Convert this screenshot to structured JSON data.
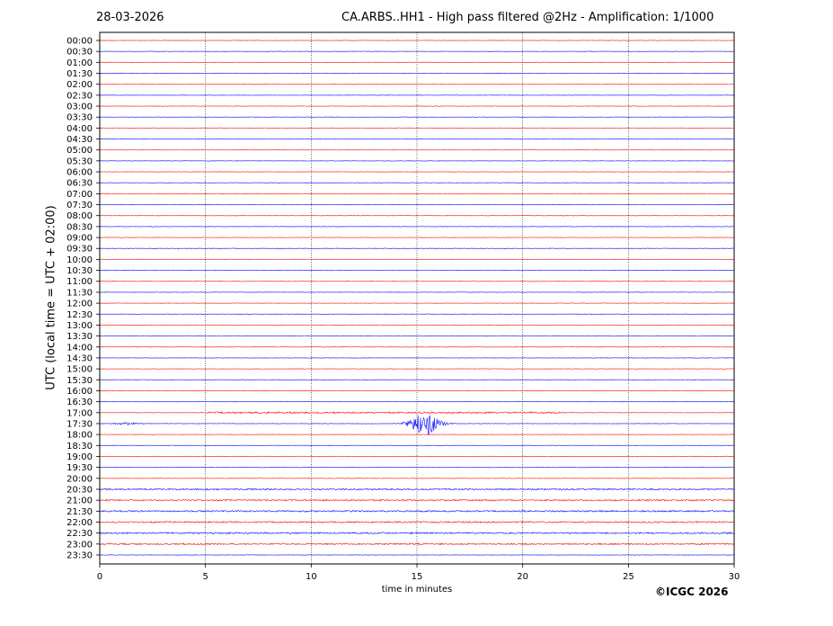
{
  "header": {
    "date": "28-03-2026",
    "title": "CA.ARBS..HH1 - High pass filtered @2Hz - Amplification: 1/1000"
  },
  "footer": {
    "copyright": "©ICGC 2026"
  },
  "chart_data": {
    "type": "line",
    "subtype": "helicorder",
    "xlabel": "time in minutes",
    "ylabel": "UTC (local time = UTC + 02:00)",
    "xlim": [
      0,
      30
    ],
    "x_ticks": [
      "0",
      "5",
      "10",
      "15",
      "20",
      "25",
      "30"
    ],
    "row_labels": [
      "00:00",
      "00:30",
      "01:00",
      "01:30",
      "02:00",
      "02:30",
      "03:00",
      "03:30",
      "04:00",
      "04:30",
      "05:00",
      "05:30",
      "06:00",
      "06:30",
      "07:00",
      "07:30",
      "08:00",
      "08:30",
      "09:00",
      "09:30",
      "10:00",
      "10:30",
      "11:00",
      "11:30",
      "12:00",
      "12:30",
      "13:00",
      "13:30",
      "14:00",
      "14:30",
      "15:00",
      "15:30",
      "16:00",
      "16:30",
      "17:00",
      "17:30",
      "18:00",
      "18:30",
      "19:00",
      "19:30",
      "20:00",
      "20:30",
      "21:00",
      "21:30",
      "22:00",
      "22:30",
      "23:00",
      "23:30"
    ],
    "row_colors": [
      "#ff0000",
      "#0000ff"
    ],
    "grid": "vertical dotted at x ticks",
    "events": [
      {
        "row": "17:30",
        "start_min": 13.8,
        "peak_min": 15.5,
        "end_min": 18.5,
        "color": "#0000ff"
      },
      {
        "row": "17:30",
        "start_min": 0.4,
        "peak_min": 1.3,
        "end_min": 2.5,
        "color": "#0000ff"
      }
    ]
  }
}
